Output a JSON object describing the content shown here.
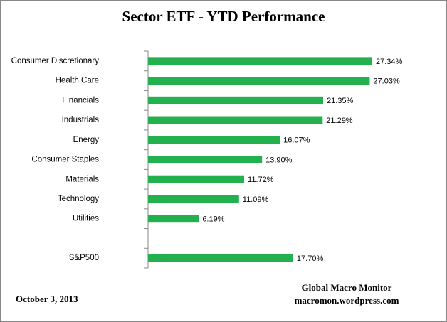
{
  "chart_data": {
    "type": "bar",
    "orientation": "horizontal",
    "title": "Sector ETF - YTD  Performance",
    "categories": [
      "Consumer Discretionary",
      "Health Care",
      "Financials",
      "Industrials",
      "Energy",
      "Consumer Staples",
      "Materials",
      "Technology",
      "Utilities",
      null,
      "S&P500"
    ],
    "values": [
      27.34,
      27.03,
      21.35,
      21.29,
      16.07,
      13.9,
      11.72,
      11.09,
      6.19,
      null,
      17.7
    ],
    "value_labels": [
      "27.34%",
      "27.03%",
      "21.35%",
      "21.29%",
      "16.07%",
      "13.90%",
      "11.72%",
      "11.09%",
      "6.19%",
      null,
      "17.70%"
    ],
    "color": "#22b14c",
    "date": "October 3, 2013",
    "annotations": [
      "Global Macro Monitor",
      "macromon.wordpress.com"
    ]
  }
}
